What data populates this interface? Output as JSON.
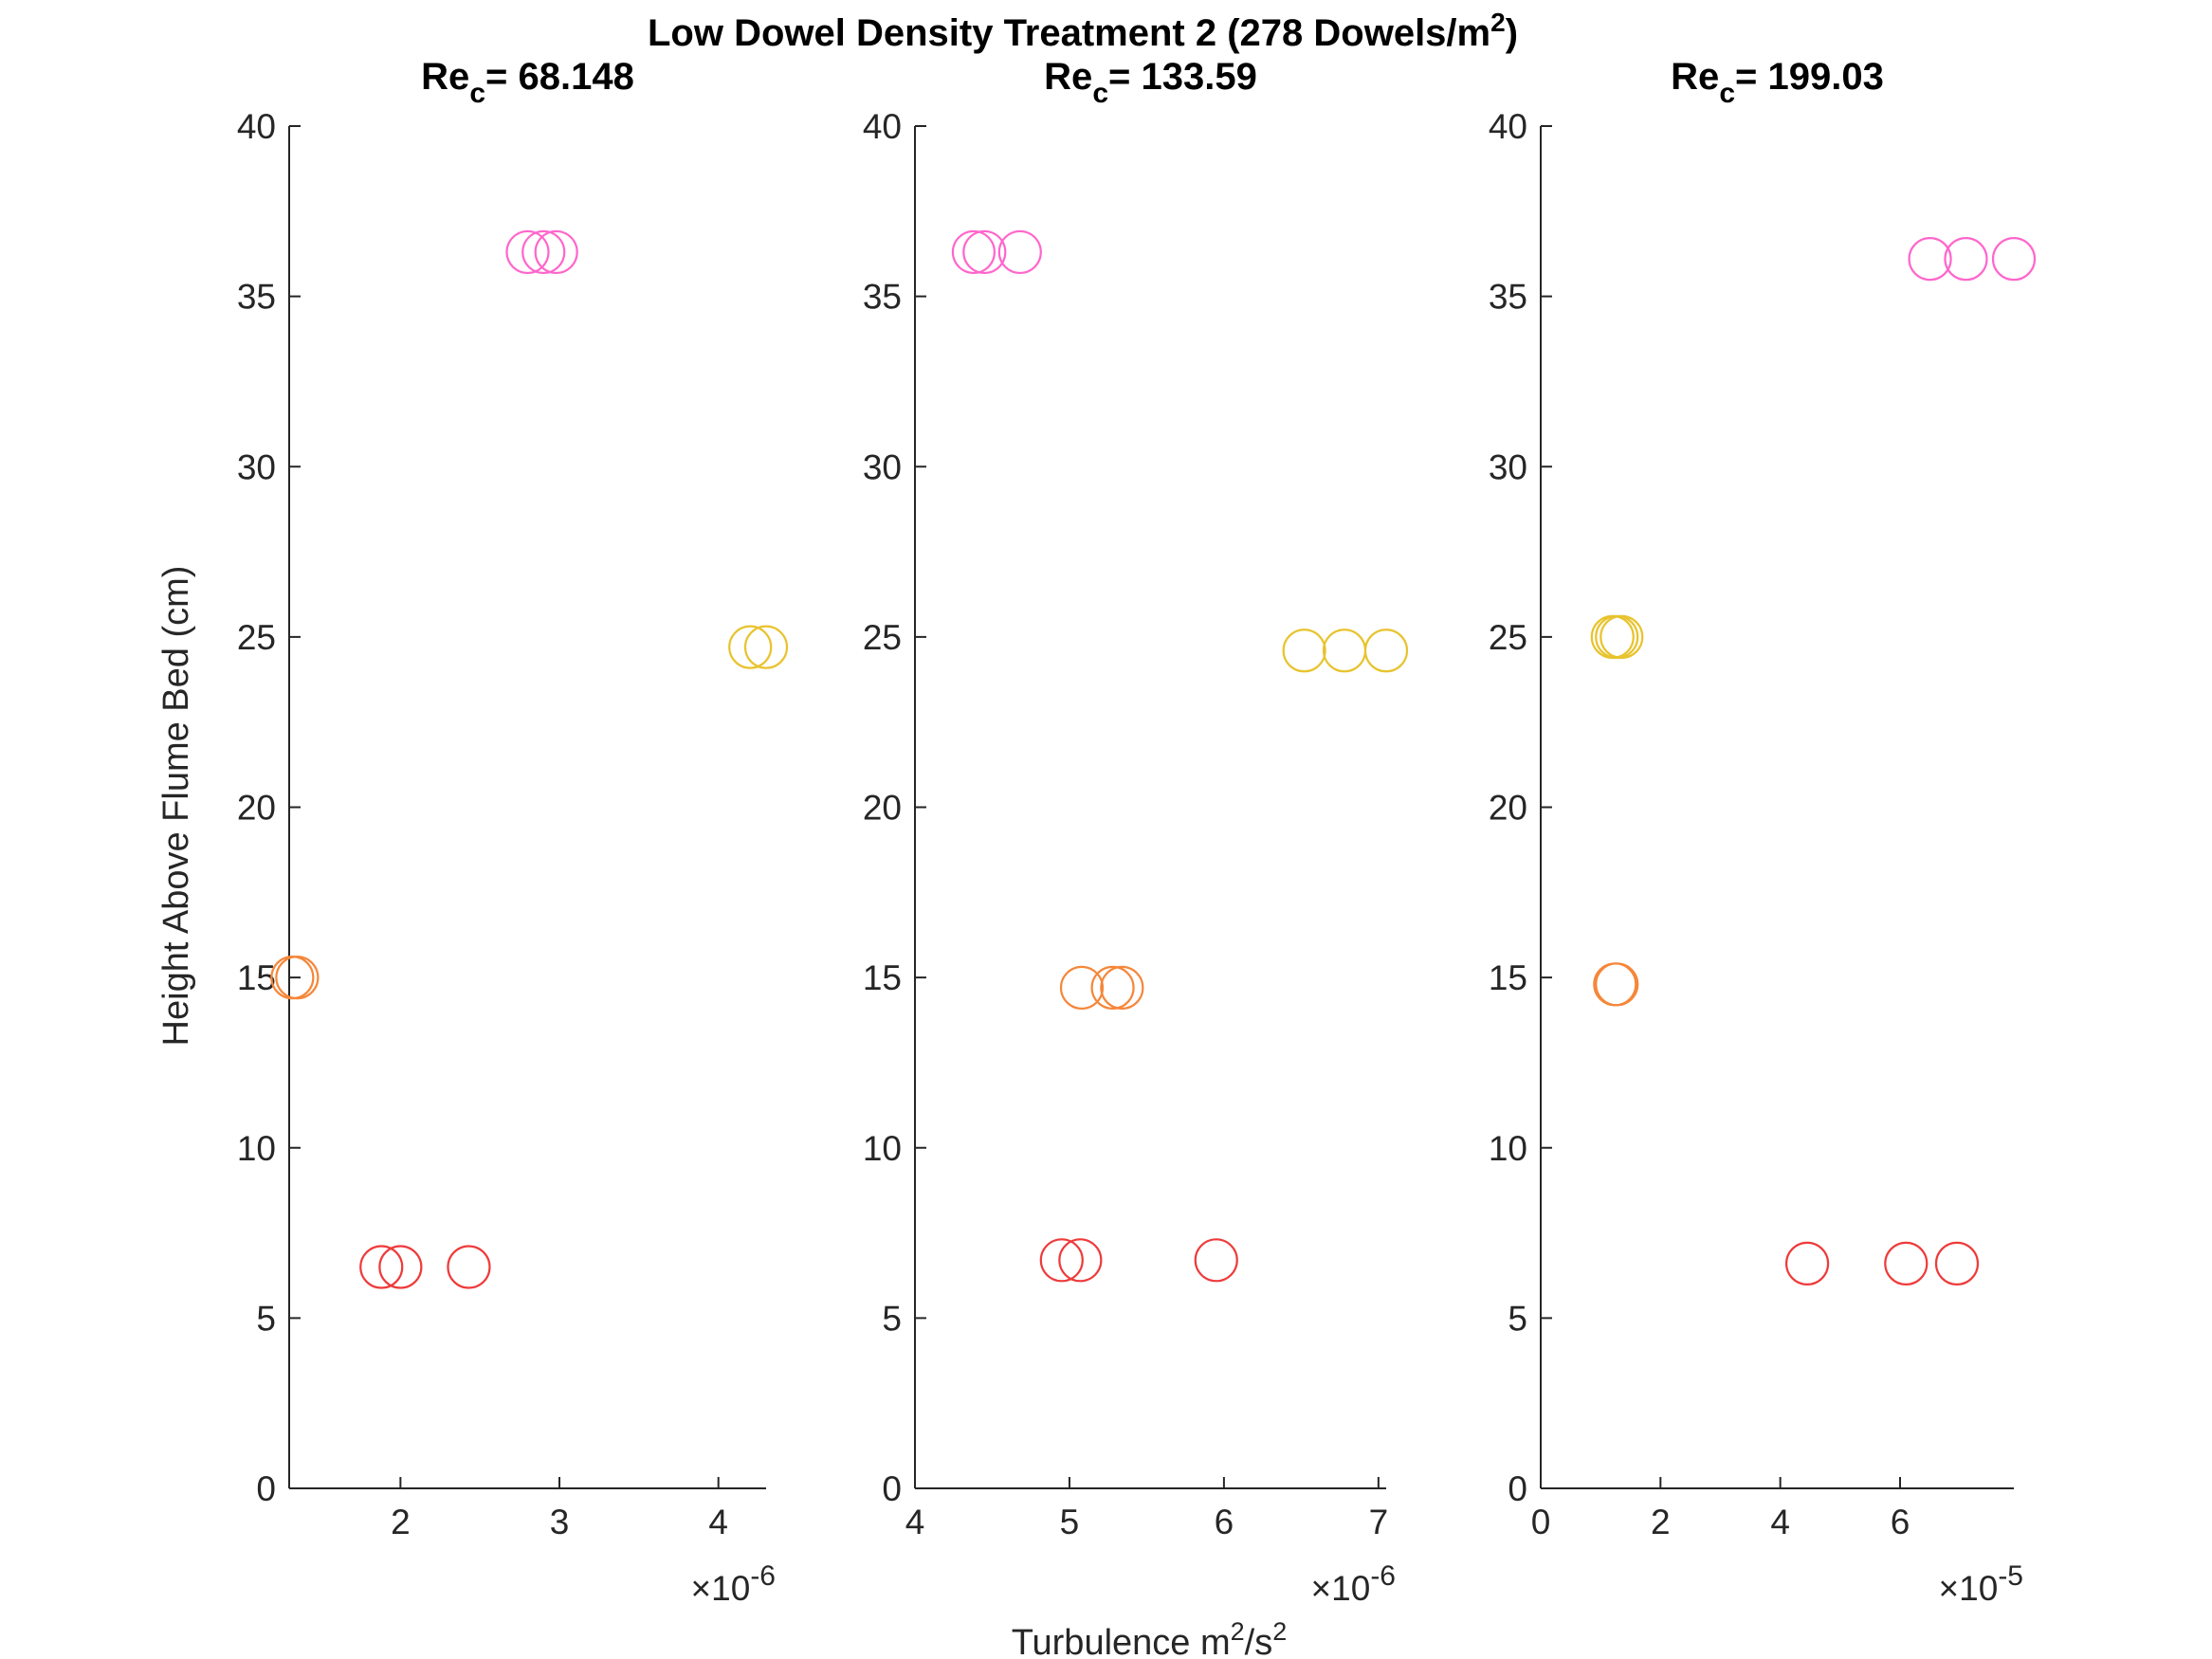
{
  "figure": {
    "title_text": "Low Dowel Density Treatment 2 (278 Dowels/m",
    "title_sup": "2",
    "title_close": ")",
    "xlabel_text": "Turbulence m",
    "xlabel_sup1": "2",
    "xlabel_mid": "/s",
    "xlabel_sup2": "2",
    "ylabel": "Height Above Flume Bed (cm)"
  },
  "colors": {
    "pink": "#ff66cc",
    "yellow": "#e8c32e",
    "orange": "#f5873a",
    "red": "#ee3b3b",
    "axis": "#262626"
  },
  "chart_data": [
    {
      "type": "scatter",
      "title_prefix": "Re",
      "title_sub": "c",
      "title_value": "= 68.148",
      "ylabel": "Height Above Flume Bed (cm)",
      "xlim": [
        1.3,
        4.3
      ],
      "ylim": [
        0,
        40
      ],
      "xticks": [
        2,
        3,
        4
      ],
      "yticks": [
        0,
        5,
        10,
        15,
        20,
        25,
        30,
        35,
        40
      ],
      "exponent_base": "×10",
      "exponent_power": "-6",
      "grid": false,
      "series": [
        {
          "color": "pink",
          "x": [
            2.8,
            2.9,
            2.98
          ],
          "y": [
            36.3,
            36.3,
            36.3
          ]
        },
        {
          "color": "yellow",
          "x": [
            4.2,
            4.3
          ],
          "y": [
            24.7,
            24.7
          ]
        },
        {
          "color": "orange",
          "x": [
            1.32,
            1.35
          ],
          "y": [
            15.0,
            15.0
          ]
        },
        {
          "color": "red",
          "x": [
            1.88,
            2.0,
            2.43
          ],
          "y": [
            6.5,
            6.5,
            6.5
          ]
        }
      ]
    },
    {
      "type": "scatter",
      "title_prefix": "Re",
      "title_sub": "c",
      "title_value": "= 133.59",
      "xlim": [
        4.0,
        7.05
      ],
      "ylim": [
        0,
        40
      ],
      "xticks": [
        4,
        5,
        6,
        7
      ],
      "yticks": [
        0,
        5,
        10,
        15,
        20,
        25,
        30,
        35,
        40
      ],
      "exponent_base": "×10",
      "exponent_power": "-6",
      "grid": false,
      "series": [
        {
          "color": "pink",
          "x": [
            4.38,
            4.45,
            4.68
          ],
          "y": [
            36.3,
            36.3,
            36.3
          ]
        },
        {
          "color": "yellow",
          "x": [
            6.52,
            6.78,
            7.05
          ],
          "y": [
            24.6,
            24.6,
            24.6
          ]
        },
        {
          "color": "orange",
          "x": [
            5.08,
            5.28,
            5.34
          ],
          "y": [
            14.7,
            14.7,
            14.7
          ]
        },
        {
          "color": "red",
          "x": [
            4.95,
            5.07,
            5.95
          ],
          "y": [
            6.7,
            6.7,
            6.7
          ]
        }
      ]
    },
    {
      "type": "scatter",
      "title_prefix": "Re",
      "title_sub": "c",
      "title_value": "= 199.03",
      "xlim": [
        0,
        7.9
      ],
      "ylim": [
        0,
        40
      ],
      "xticks": [
        0,
        2,
        4,
        6
      ],
      "yticks": [
        0,
        5,
        10,
        15,
        20,
        25,
        30,
        35,
        40
      ],
      "exponent_base": "×10",
      "exponent_power": "-5",
      "grid": false,
      "series": [
        {
          "color": "pink",
          "x": [
            6.5,
            7.1,
            7.9
          ],
          "y": [
            36.1,
            36.1,
            36.1
          ]
        },
        {
          "color": "yellow",
          "x": [
            1.2,
            1.27,
            1.35
          ],
          "y": [
            25.0,
            25.0,
            25.0
          ]
        },
        {
          "color": "orange",
          "x": [
            1.24,
            1.27
          ],
          "y": [
            14.8,
            14.8
          ]
        },
        {
          "color": "red",
          "x": [
            4.45,
            6.1,
            6.95
          ],
          "y": [
            6.6,
            6.6,
            6.6
          ]
        }
      ]
    }
  ]
}
